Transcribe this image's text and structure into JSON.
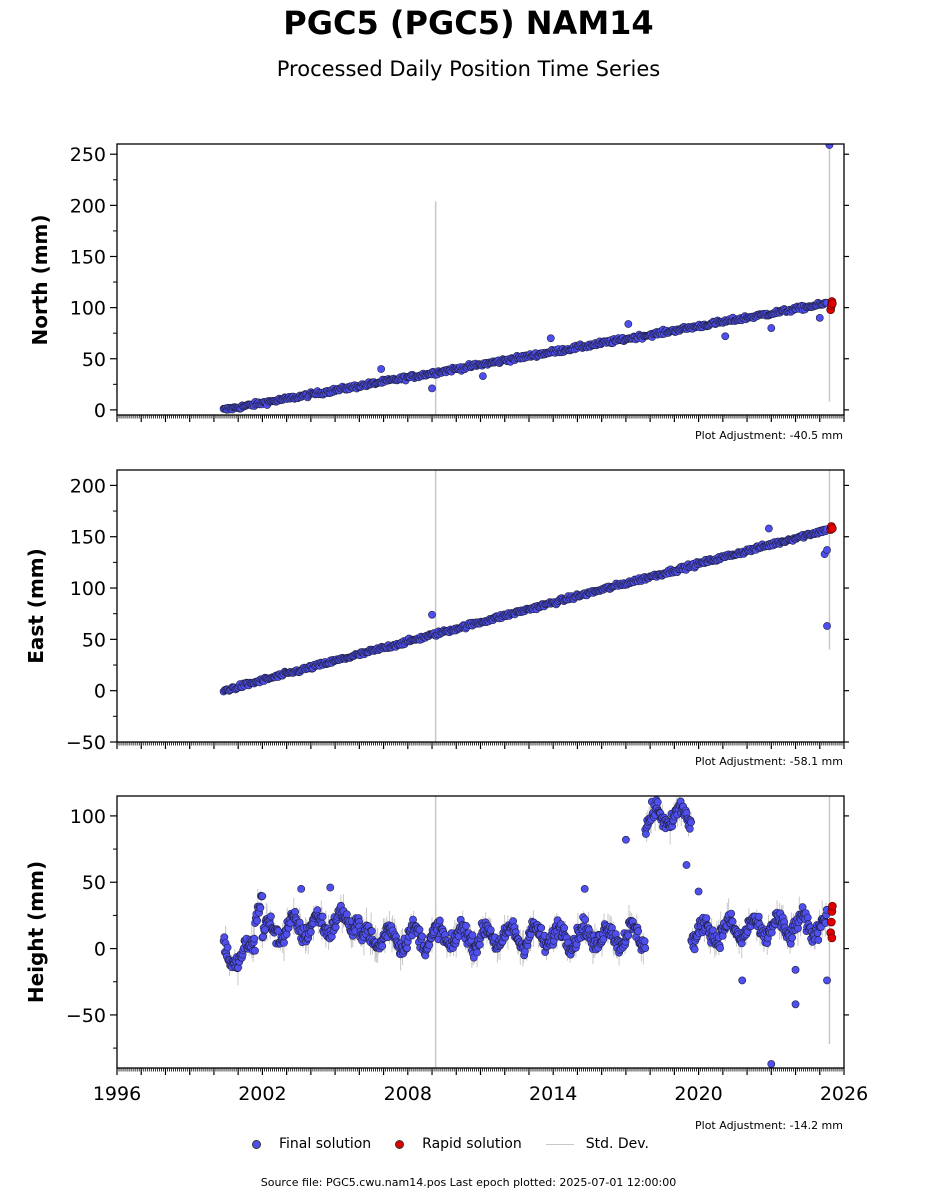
{
  "title": "PGC5 (PGC5) NAM14",
  "subtitle": "Processed Daily Position Time Series",
  "colors": {
    "final": "#4f4ff0",
    "rapid": "#e00000",
    "stddev": "#c8c8c8"
  },
  "legend": {
    "final": "Final solution",
    "rapid": "Rapid solution",
    "stddev": "Std. Dev."
  },
  "source": "Source file: PGC5.cwu.nam14.pos  Last epoch plotted: 2025-07-01 12:00:00",
  "chart_data": [
    {
      "type": "scatter",
      "ylabel": "North (mm)",
      "adjustment": "Plot Adjustment: -40.5 mm",
      "xlim": [
        1996,
        2026
      ],
      "ylim": [
        -5,
        260
      ],
      "yticks": [
        0,
        50,
        100,
        150,
        200,
        250
      ],
      "trend": {
        "x0": 2000.4,
        "y0": 0,
        "x1": 2025.3,
        "y1": 104
      },
      "noise": 3,
      "gaps": [],
      "segments": [],
      "outliers": [
        {
          "x": 2009.0,
          "y": 21
        },
        {
          "x": 2011.1,
          "y": 33
        },
        {
          "x": 2006.9,
          "y": 40
        },
        {
          "x": 2013.9,
          "y": 70
        },
        {
          "x": 2017.1,
          "y": 84
        },
        {
          "x": 2021.1,
          "y": 72
        },
        {
          "x": 2023.0,
          "y": 80
        },
        {
          "x": 2025.0,
          "y": 90
        },
        {
          "x": 2025.4,
          "y": 259
        }
      ],
      "rapid": [
        {
          "x": 2025.45,
          "y": 98
        },
        {
          "x": 2025.48,
          "y": 102
        },
        {
          "x": 2025.5,
          "y": 106
        },
        {
          "x": 2025.52,
          "y": 104
        }
      ],
      "std_lines": [
        {
          "x": 2009.15,
          "y0": -5,
          "y1": 204
        },
        {
          "x": 2025.4,
          "y0": 8,
          "y1": 260
        }
      ]
    },
    {
      "type": "scatter",
      "ylabel": "East (mm)",
      "adjustment": "Plot Adjustment: -58.1 mm",
      "xlim": [
        1996,
        2026
      ],
      "ylim": [
        -50,
        215
      ],
      "yticks": [
        -50,
        0,
        50,
        100,
        150,
        200
      ],
      "trend": {
        "x0": 2000.4,
        "y0": 0,
        "x1": 2025.3,
        "y1": 157
      },
      "noise": 3,
      "gaps": [],
      "segments": [],
      "outliers": [
        {
          "x": 2009.0,
          "y": 74
        },
        {
          "x": 2022.9,
          "y": 158
        },
        {
          "x": 2025.2,
          "y": 133
        },
        {
          "x": 2025.3,
          "y": 137
        },
        {
          "x": 2025.3,
          "y": 63
        }
      ],
      "rapid": [
        {
          "x": 2025.45,
          "y": 157
        },
        {
          "x": 2025.48,
          "y": 160
        },
        {
          "x": 2025.52,
          "y": 158
        }
      ],
      "std_lines": [
        {
          "x": 2009.15,
          "y0": -50,
          "y1": 215
        },
        {
          "x": 2025.4,
          "y0": 40,
          "y1": 215
        }
      ]
    },
    {
      "type": "scatter",
      "ylabel": "Height (mm)",
      "adjustment": "Plot Adjustment: -14.2 mm",
      "xlim": [
        1996,
        2026
      ],
      "ylim": [
        -90,
        115
      ],
      "yticks": [
        -50,
        0,
        50,
        100
      ],
      "xticks": [
        1996,
        2002,
        2008,
        2014,
        2020,
        2026
      ],
      "trend": null,
      "noise": 8,
      "gaps": [
        [
          2017.8,
          2019.7
        ]
      ],
      "segments": [
        {
          "x0": 2000.4,
          "x1": 2001.1,
          "y0": 2,
          "y1": -12
        },
        {
          "x0": 2001.1,
          "x1": 2001.7,
          "y0": -12,
          "y1": 10
        },
        {
          "x0": 2001.7,
          "x1": 2002.0,
          "y0": 30,
          "y1": 40
        },
        {
          "x0": 2002.0,
          "x1": 2006.0,
          "y0": 12,
          "y1": 22
        },
        {
          "x0": 2006.0,
          "x1": 2017.8,
          "y0": 8,
          "y1": 10
        },
        {
          "x0": 2019.7,
          "x1": 2025.3,
          "y0": 12,
          "y1": 18
        }
      ],
      "extra_segments": [
        {
          "x0": 2017.8,
          "x1": 2019.7,
          "y0": 98,
          "y1": 100
        }
      ],
      "outliers": [
        {
          "x": 2003.6,
          "y": 45
        },
        {
          "x": 2004.8,
          "y": 46
        },
        {
          "x": 2015.3,
          "y": 45
        },
        {
          "x": 2017.0,
          "y": 82
        },
        {
          "x": 2019.5,
          "y": 63
        },
        {
          "x": 2020.0,
          "y": 43
        },
        {
          "x": 2021.8,
          "y": -24
        },
        {
          "x": 2023.0,
          "y": -87
        },
        {
          "x": 2024.0,
          "y": -16
        },
        {
          "x": 2024.0,
          "y": -42
        },
        {
          "x": 2025.3,
          "y": -24
        }
      ],
      "rapid": [
        {
          "x": 2025.45,
          "y": 12
        },
        {
          "x": 2025.48,
          "y": 20
        },
        {
          "x": 2025.5,
          "y": 28
        },
        {
          "x": 2025.52,
          "y": 32
        },
        {
          "x": 2025.5,
          "y": 8
        }
      ],
      "std_lines": [
        {
          "x": 2009.15,
          "y0": -90,
          "y1": 115
        },
        {
          "x": 2025.4,
          "y0": -72,
          "y1": 115
        }
      ]
    }
  ]
}
